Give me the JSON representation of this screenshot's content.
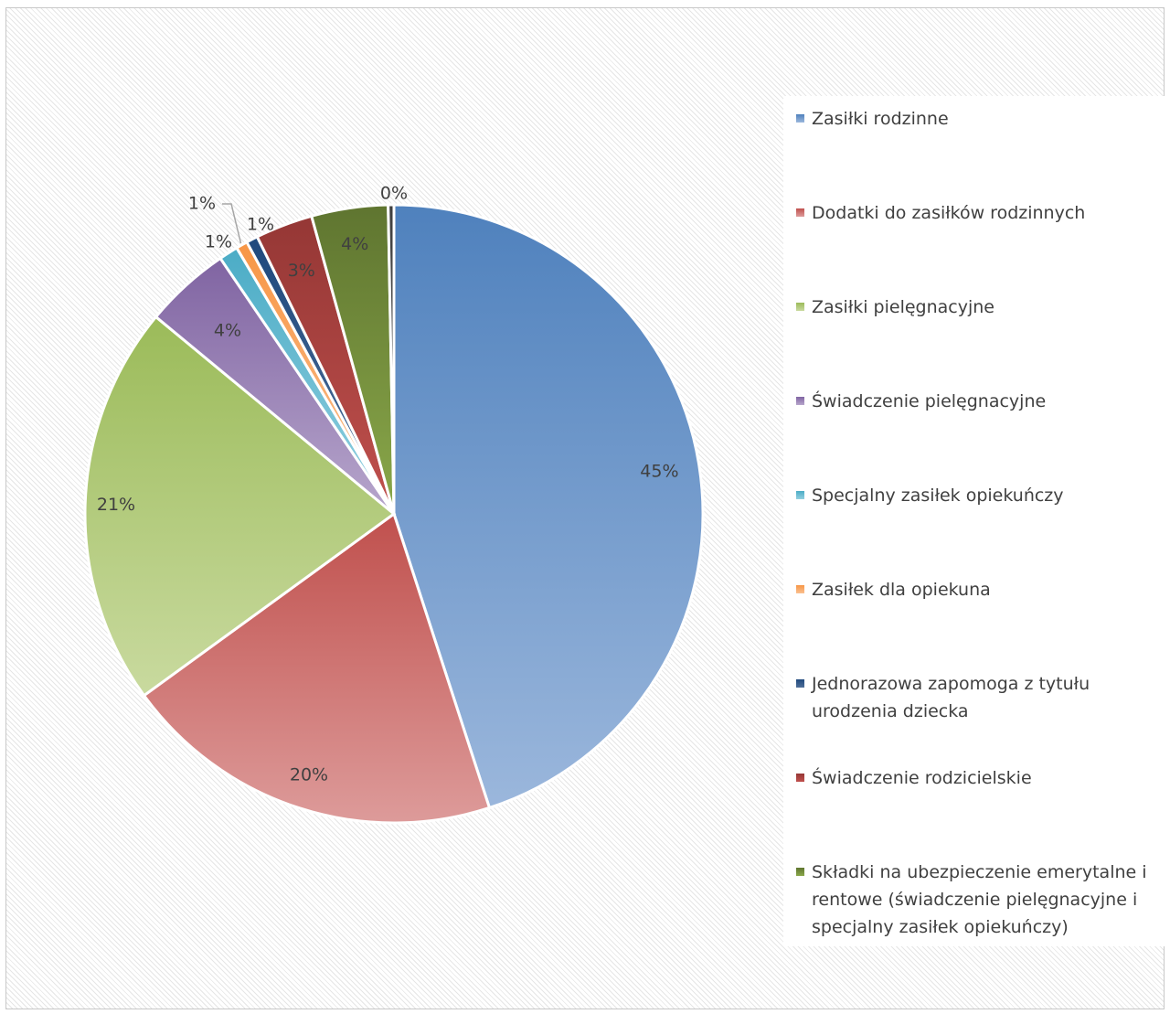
{
  "chart_data": {
    "type": "pie",
    "title": "",
    "legend_position": "right",
    "slices": [
      {
        "name": "Zasiłki rodzinne",
        "value": 45,
        "label": "45%",
        "color": "#4f81bd",
        "color_light": "#9bb7dc"
      },
      {
        "name": "Dodatki do zasiłków rodzinnych",
        "value": 20,
        "label": "20%",
        "color": "#c0504d",
        "color_light": "#dd9b9a"
      },
      {
        "name": "Zasiłki pielęgnacyjne",
        "value": 21,
        "label": "21%",
        "color": "#9bbb59",
        "color_light": "#c9da9f"
      },
      {
        "name": "Świadczenie pielęgnacyjne",
        "value": 4.5,
        "label": "4%",
        "color": "#8064a2",
        "color_light": "#b7a6cc"
      },
      {
        "name": "Specjalny zasiłek opiekuńczy",
        "value": 1,
        "label": "1%",
        "color": "#4bacc6",
        "color_light": "#93d0e0"
      },
      {
        "name": "Zasiłek dla opiekuna",
        "value": 0.6,
        "label": "1%",
        "color": "#f79646",
        "color_light": "#fac090"
      },
      {
        "name": "Jednorazowa zapomoga z tytułu urodzenia dziecka",
        "value": 0.6,
        "label": "1%",
        "color": "#1f497d",
        "color_light": "#4f6f99"
      },
      {
        "name": "Świadczenie rodzicielskie",
        "value": 3,
        "label": "3%",
        "color": "#953735",
        "color_light": "#c0504d"
      },
      {
        "name": "Składki na ubezpieczenie emerytalne i rentowe (świadczenie pielęgnacyjne i specjalny zasiłek opiekuńczy)",
        "value": 4,
        "label": "4%",
        "color": "#5f7530",
        "color_light": "#8aa84a"
      },
      {
        "name": "",
        "value": 0.3,
        "label": "0%",
        "color": "#404040",
        "color_light": "#606060"
      }
    ]
  }
}
